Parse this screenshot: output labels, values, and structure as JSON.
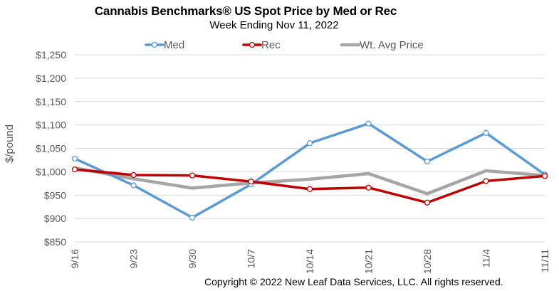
{
  "chart_data": {
    "type": "line",
    "title": "Cannabis Benchmarks® US Spot Price by Med or Rec",
    "subtitle": "Week Ending Nov 11, 2022",
    "ylabel": "$/pound",
    "xlabel": "",
    "categories": [
      "9/16",
      "9/23",
      "9/30",
      "10/7",
      "10/14",
      "10/21",
      "10/28",
      "11/4",
      "11/11"
    ],
    "ylim": [
      850,
      1250
    ],
    "yticks": [
      850,
      900,
      950,
      1000,
      1050,
      1100,
      1150,
      1200,
      1250
    ],
    "ytick_labels": [
      "$850",
      "$900",
      "$950",
      "$1,000",
      "$1,050",
      "$1,100",
      "$1,150",
      "$1,200",
      "$1,250"
    ],
    "grid": true,
    "legend_placement": "top",
    "series": [
      {
        "name": "Med",
        "color": "#5b9bd5",
        "markers": true,
        "values": [
          1028,
          971,
          902,
          973,
          1061,
          1103,
          1022,
          1083,
          994
        ]
      },
      {
        "name": "Rec",
        "color": "#c00000",
        "markers": true,
        "values": [
          1005,
          993,
          992,
          979,
          963,
          966,
          934,
          980,
          991
        ]
      },
      {
        "name": "Wt. Avg Price",
        "color": "#a6a6a6",
        "markers": false,
        "values": [
          1008,
          985,
          965,
          976,
          984,
          996,
          953,
          1002,
          992
        ]
      }
    ]
  },
  "footer": {
    "copyright": "Copyright © 2022 New Leaf Data Services, LLC. All rights reserved."
  }
}
